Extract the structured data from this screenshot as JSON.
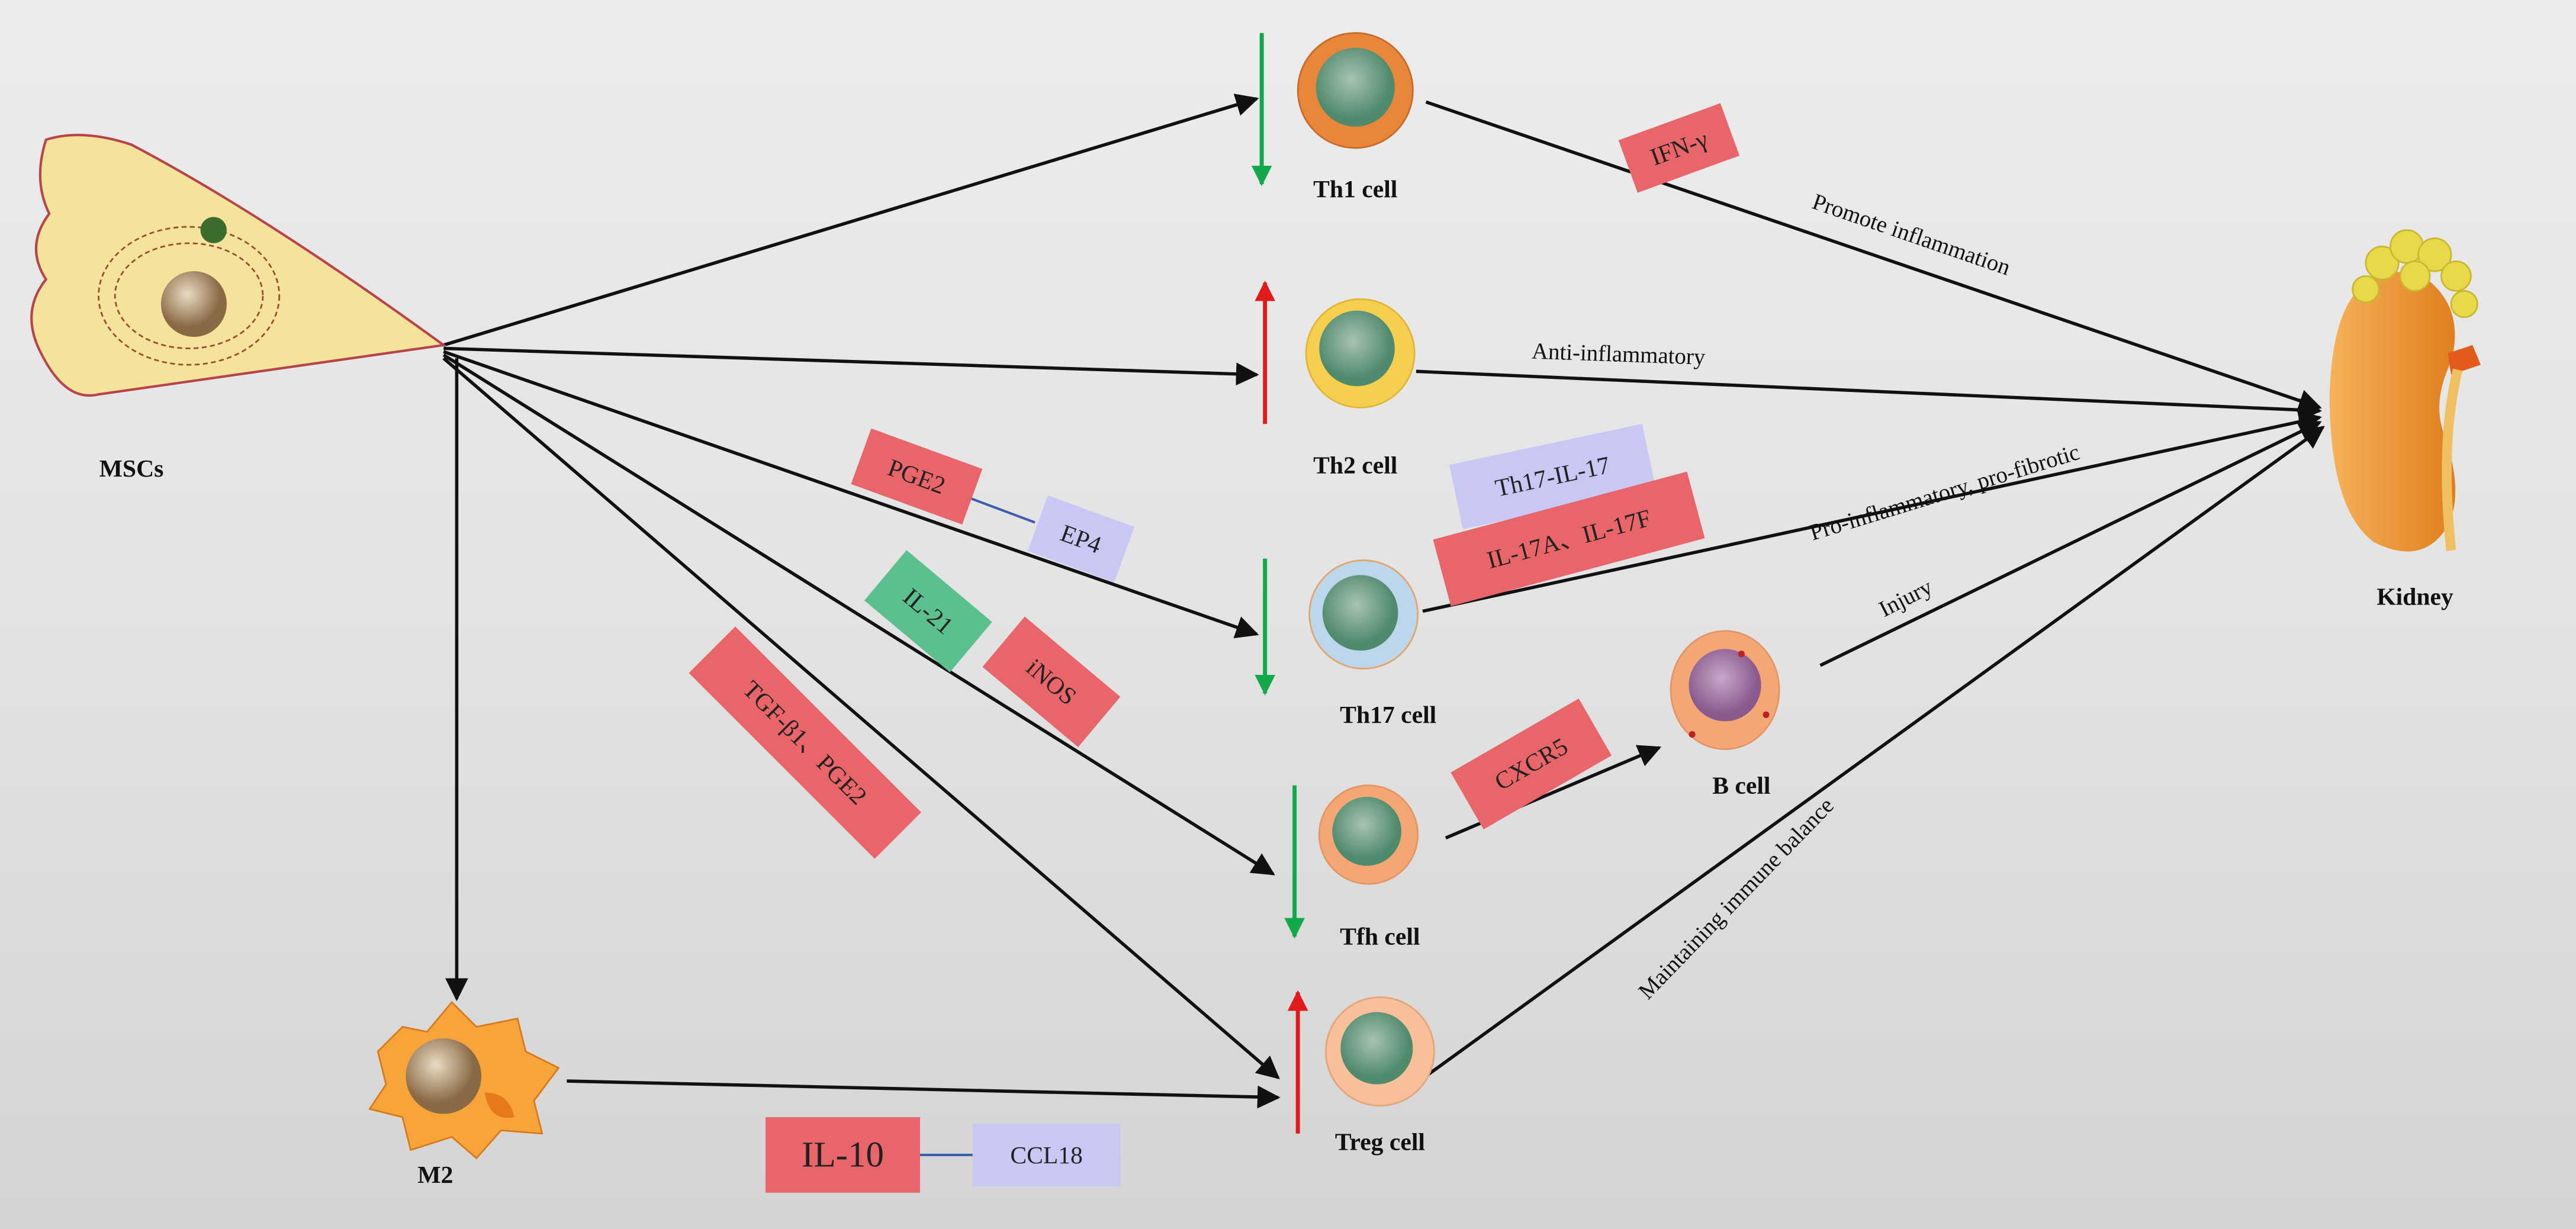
{
  "cells": {
    "mscs": "MSCs",
    "th1": "Th1 cell",
    "th2": "Th2 cell",
    "th17": "Th17 cell",
    "tfh": "Tfh cell",
    "treg": "Treg cell",
    "bcell": "B cell",
    "m2": "M2",
    "kidney": "Kidney"
  },
  "effects": {
    "th1": "Promote inflammation",
    "th2": "Anti-inflammatory",
    "th17": "Pro-inflammatory,  pro-fibrotic",
    "bcell": "Injury",
    "treg": "Maintaining  immune  balance"
  },
  "regulation": {
    "th1": "down",
    "th2": "up",
    "th17": "down",
    "tfh": "down",
    "treg": "up"
  },
  "mediators": {
    "ifn": "IFN-γ",
    "th17_il17": "Th17-IL-17",
    "il17af": "IL-17A、IL-17F",
    "pge2": "PGE2",
    "ep4": "EP4",
    "il21": "IL-21",
    "inos": "iNOS",
    "tgf": "TGF-β1、PGE2",
    "cxcr5": "CXCR5",
    "il10": "IL-10",
    "ccl18": "CCL18"
  },
  "colors": {
    "red_box": "#e8656a",
    "lavender_box": "#c9c8f5",
    "green_box": "#5cc08e",
    "up_arrow": "#e01b1b",
    "down_arrow": "#13a84a"
  }
}
